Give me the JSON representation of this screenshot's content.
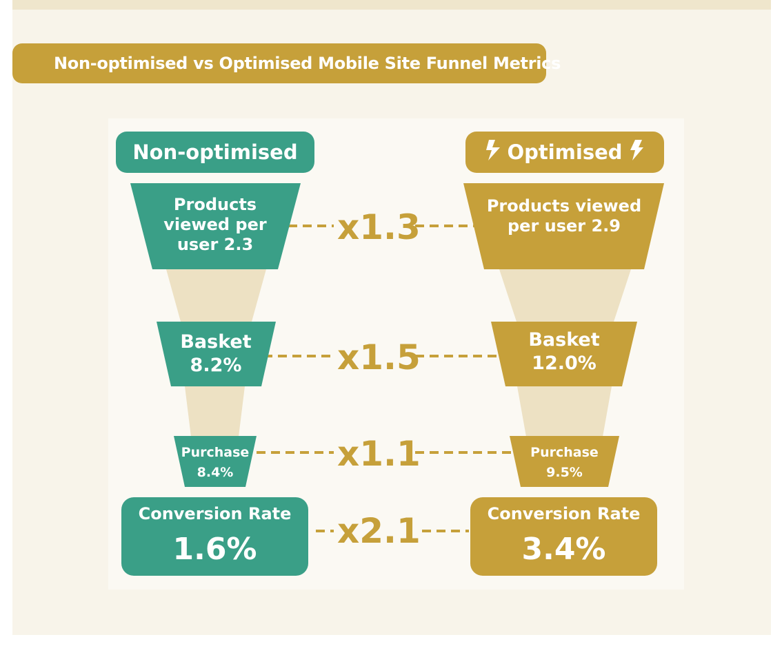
{
  "title": "Non-optimised vs Optimised Mobile Site Funnel Metrics",
  "colors": {
    "teal": "#3a9f87",
    "gold": "#c6a03a",
    "beige": "#ede1c3",
    "background": "#f8f4ea"
  },
  "left": {
    "header": "Non-optimised",
    "products": "Products viewed per user 2.3",
    "basket_label": "Basket",
    "basket_value": "8.2%",
    "purchase_label": "Purchase",
    "purchase_value": "8.4%",
    "conversion_label": "Conversion Rate",
    "conversion_value": "1.6%"
  },
  "right": {
    "header": "Optimised",
    "header_icon": "lightning-bolt-icon",
    "products": "Products viewed per user 2.9",
    "basket_label": "Basket",
    "basket_value": "12.0%",
    "purchase_label": "Purchase",
    "purchase_value": "9.5%",
    "conversion_label": "Conversion Rate",
    "conversion_value": "3.4%"
  },
  "multipliers": {
    "products": "x1.3",
    "basket": "x1.5",
    "purchase": "x1.1",
    "conversion": "x2.1"
  }
}
